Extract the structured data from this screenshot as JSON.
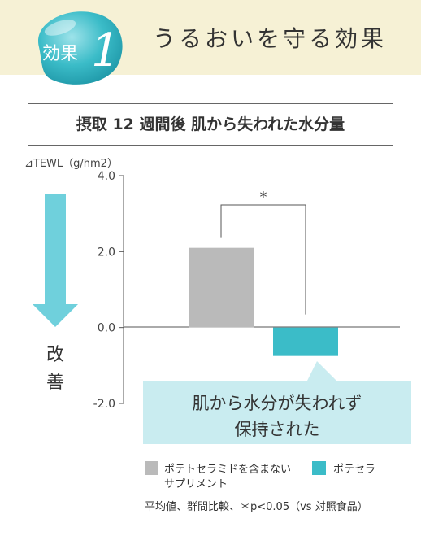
{
  "header": {
    "badge_word": "効果",
    "badge_number": "1",
    "title": "うるおいを守る効果"
  },
  "chart_title": "摂取 12 週間後  肌から失われた水分量",
  "improve_label": [
    "改",
    "善"
  ],
  "callout": {
    "line1": "肌から水分が失われず",
    "line2": "保持された"
  },
  "chart_data": {
    "type": "bar",
    "ylabel": "⊿TEWL（g/hm2）",
    "ylim": [
      -2.0,
      4.0
    ],
    "yticks": [
      "4.0",
      "2.0",
      "0.0",
      "-2.0"
    ],
    "ytick_values": [
      4.0,
      2.0,
      0.0,
      -2.0
    ],
    "categories": [
      "ポテトセラミドを含まない サプリメント",
      "ポテセラ"
    ],
    "values": [
      2.1,
      -0.75
    ],
    "colors": [
      "#bababa",
      "#3bbcc8"
    ],
    "significance": "*",
    "grid": false
  },
  "legend": [
    {
      "label_line1": "ポテトセラミドを含まない",
      "label_line2": "サプリメント",
      "color": "#bababa"
    },
    {
      "label_line1": "ポテセラ",
      "label_line2": "",
      "color": "#3bbcc8"
    }
  ],
  "footnote": "平均値、群間比較、＊p<0.05（vs 対照食品）",
  "colors": {
    "header_bg": "#f6f1d5",
    "teal": "#3bbcc8",
    "arrow": "#6fd0dc",
    "callout_bg": "#c9ecf0",
    "gray_bar": "#bababa"
  }
}
